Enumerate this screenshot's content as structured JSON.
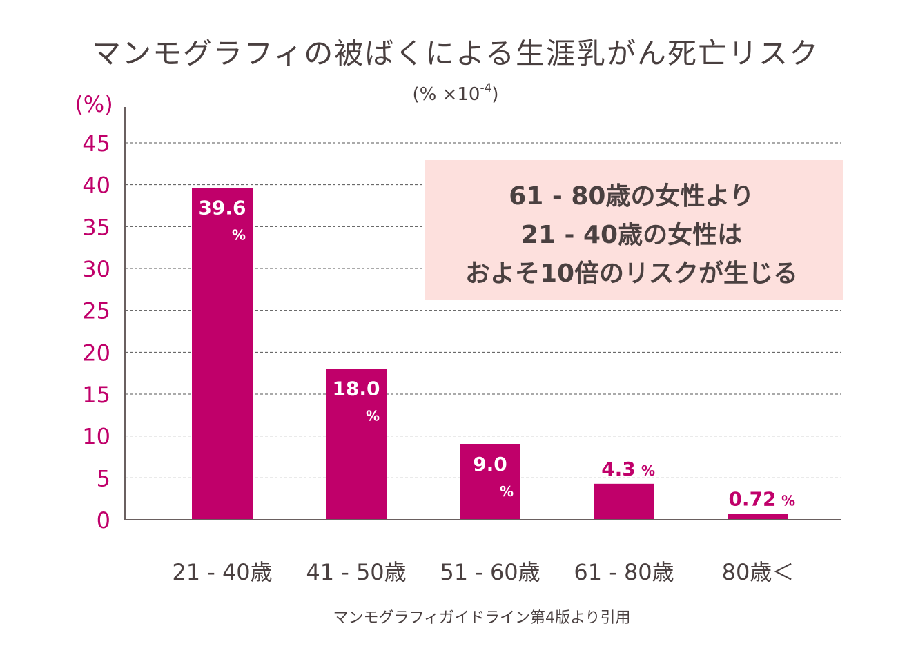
{
  "chart_data": {
    "type": "bar",
    "title": "マンモグラフィの被ばくによる生涯乳がん死亡リスク",
    "subtitle_prefix": "(% ×10",
    "subtitle_sup": "-4",
    "subtitle_suffix": ")",
    "ylabel": "(%)",
    "ylim": [
      0,
      45
    ],
    "yticks": [
      "0",
      "5",
      "10",
      "15",
      "20",
      "25",
      "30",
      "35",
      "40",
      "45"
    ],
    "categories": [
      "21 - 40歳",
      "41 - 50歳",
      "51 - 60歳",
      "61 - 80歳",
      "80歳＜"
    ],
    "values": [
      39.6,
      18.0,
      9.0,
      4.3,
      0.72
    ],
    "value_labels": [
      "39.6",
      "18.0",
      "9.0",
      "4.3",
      "0.72"
    ],
    "value_unit": "%",
    "bar_color": "#c0006a",
    "grid": "horizontal-dashed",
    "note_lines": [
      "61 - 80歳の女性より",
      "21 - 40歳の女性は",
      "およそ10倍のリスクが生じる"
    ],
    "note_bg": "#fde0dd",
    "source": "マンモグラフィガイドライン第4版より引用"
  }
}
